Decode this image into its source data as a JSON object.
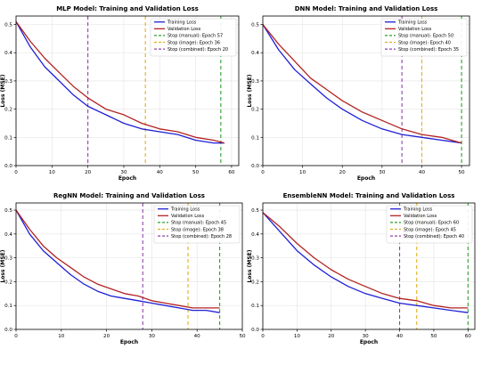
{
  "chart_data": [
    {
      "type": "line",
      "title": "MLP Model: Training and Validation Loss",
      "xlabel": "Epoch",
      "ylabel": "Loss (MSE)",
      "xlim": [
        0,
        62
      ],
      "ylim": [
        0,
        0.53
      ],
      "xticks": [
        0,
        10,
        20,
        30,
        40,
        50,
        60
      ],
      "yticks": [
        0.0,
        0.1,
        0.2,
        0.3,
        0.4,
        0.5
      ],
      "grid": true,
      "legend_position": "top-right",
      "series": [
        {
          "name": "Training Loss",
          "color": "#1f1fd6",
          "x": [
            0,
            4,
            8,
            12,
            16,
            20,
            25,
            30,
            35,
            40,
            45,
            50,
            55,
            58
          ],
          "y": [
            0.51,
            0.42,
            0.35,
            0.3,
            0.25,
            0.21,
            0.18,
            0.15,
            0.13,
            0.12,
            0.11,
            0.09,
            0.08,
            0.08
          ]
        },
        {
          "name": "Validation Loss",
          "color": "#b22222",
          "x": [
            0,
            4,
            8,
            12,
            16,
            20,
            25,
            30,
            35,
            40,
            45,
            50,
            55,
            58
          ],
          "y": [
            0.51,
            0.44,
            0.38,
            0.33,
            0.28,
            0.24,
            0.2,
            0.18,
            0.15,
            0.13,
            0.12,
            0.1,
            0.09,
            0.08
          ]
        }
      ],
      "vlines": [
        {
          "label": "Stop (manual): Epoch 57",
          "x": 57,
          "color": "#2ca02c"
        },
        {
          "label": "Stop (image): Epoch 36",
          "x": 36,
          "color": "#e0b020"
        },
        {
          "label": "Stop (combined): Epoch 20",
          "x": 20,
          "color": "#8e44ad"
        }
      ]
    },
    {
      "type": "line",
      "title": "DNN Model: Training and Validation Loss",
      "xlabel": "Epoch",
      "ylabel": "Loss (MSE)",
      "xlim": [
        0,
        52
      ],
      "ylim": [
        0,
        0.53
      ],
      "xticks": [
        0,
        10,
        20,
        30,
        40,
        50
      ],
      "yticks": [
        0.0,
        0.1,
        0.2,
        0.3,
        0.4,
        0.5
      ],
      "grid": true,
      "legend_position": "top-right",
      "series": [
        {
          "name": "Training Loss",
          "color": "#1f1fd6",
          "x": [
            0,
            4,
            8,
            12,
            16,
            20,
            25,
            30,
            35,
            40,
            45,
            50
          ],
          "y": [
            0.5,
            0.41,
            0.34,
            0.29,
            0.24,
            0.2,
            0.16,
            0.13,
            0.11,
            0.1,
            0.09,
            0.08
          ]
        },
        {
          "name": "Validation Loss",
          "color": "#b22222",
          "x": [
            0,
            4,
            8,
            12,
            16,
            20,
            25,
            30,
            35,
            40,
            45,
            50
          ],
          "y": [
            0.5,
            0.43,
            0.37,
            0.31,
            0.27,
            0.23,
            0.19,
            0.16,
            0.13,
            0.11,
            0.1,
            0.08
          ]
        }
      ],
      "vlines": [
        {
          "label": "Stop (manual): Epoch 50",
          "x": 50,
          "color": "#2ca02c"
        },
        {
          "label": "Stop (image): Epoch 40",
          "x": 40,
          "color": "#e0b020"
        },
        {
          "label": "Stop (combined): Epoch 35",
          "x": 35,
          "color": "#8e44ad"
        }
      ]
    },
    {
      "type": "line",
      "title": "RegNN Model: Training and Validation Loss",
      "xlabel": "Epoch",
      "ylabel": "Loss (MSE)",
      "xlim": [
        0,
        50
      ],
      "ylim": [
        0,
        0.53
      ],
      "xticks": [
        0,
        10,
        20,
        30,
        40,
        50
      ],
      "yticks": [
        0.0,
        0.1,
        0.2,
        0.3,
        0.4,
        0.5
      ],
      "grid": true,
      "legend_position": "top-right",
      "series": [
        {
          "name": "Training Loss",
          "color": "#1f1fd6",
          "x": [
            0,
            3,
            6,
            9,
            12,
            15,
            18,
            21,
            24,
            27,
            30,
            33,
            36,
            39,
            42,
            45
          ],
          "y": [
            0.5,
            0.4,
            0.33,
            0.28,
            0.23,
            0.19,
            0.16,
            0.14,
            0.13,
            0.12,
            0.11,
            0.1,
            0.09,
            0.08,
            0.08,
            0.07
          ]
        },
        {
          "name": "Validation Loss",
          "color": "#b22222",
          "x": [
            0,
            3,
            6,
            9,
            12,
            15,
            18,
            21,
            24,
            27,
            30,
            33,
            36,
            39,
            42,
            45
          ],
          "y": [
            0.5,
            0.42,
            0.35,
            0.3,
            0.26,
            0.22,
            0.19,
            0.17,
            0.15,
            0.14,
            0.12,
            0.11,
            0.1,
            0.09,
            0.09,
            0.09
          ]
        }
      ],
      "vlines": [
        {
          "label": "Stop (manual): Epoch 45",
          "x": 45,
          "color": "#2ca02c"
        },
        {
          "label": "Stop (image): Epoch 38",
          "x": 38,
          "color": "#e0b020"
        },
        {
          "label": "Stop (combined): Epoch 28",
          "x": 28,
          "color": "#8e44ad"
        }
      ]
    },
    {
      "type": "line",
      "title": "EnsembleNN Model: Training and Validation Loss",
      "xlabel": "Epoch",
      "ylabel": "Loss (MSE)",
      "xlim": [
        0,
        62
      ],
      "ylim": [
        0,
        0.53
      ],
      "xticks": [
        0,
        10,
        20,
        30,
        40,
        50,
        60
      ],
      "yticks": [
        0.0,
        0.1,
        0.2,
        0.3,
        0.4,
        0.5
      ],
      "grid": true,
      "legend_position": "top-right",
      "series": [
        {
          "name": "Training Loss",
          "color": "#1f1fd6",
          "x": [
            0,
            5,
            10,
            15,
            20,
            25,
            30,
            35,
            40,
            45,
            50,
            55,
            60
          ],
          "y": [
            0.49,
            0.41,
            0.33,
            0.27,
            0.22,
            0.18,
            0.15,
            0.13,
            0.11,
            0.1,
            0.09,
            0.08,
            0.07
          ]
        },
        {
          "name": "Validation Loss",
          "color": "#b22222",
          "x": [
            0,
            5,
            10,
            15,
            20,
            25,
            30,
            35,
            40,
            45,
            50,
            55,
            60
          ],
          "y": [
            0.49,
            0.43,
            0.36,
            0.3,
            0.25,
            0.21,
            0.18,
            0.15,
            0.13,
            0.12,
            0.1,
            0.09,
            0.09
          ]
        }
      ],
      "vlines": [
        {
          "label": "Stop (manual): Epoch 60",
          "x": 60,
          "color": "#2ca02c"
        },
        {
          "label": "Stop (image): Epoch 45",
          "x": 45,
          "color": "#e0b020"
        },
        {
          "label": "Stop (combined): Epoch 40",
          "x": 40,
          "color": "#8e44ad"
        }
      ]
    }
  ]
}
